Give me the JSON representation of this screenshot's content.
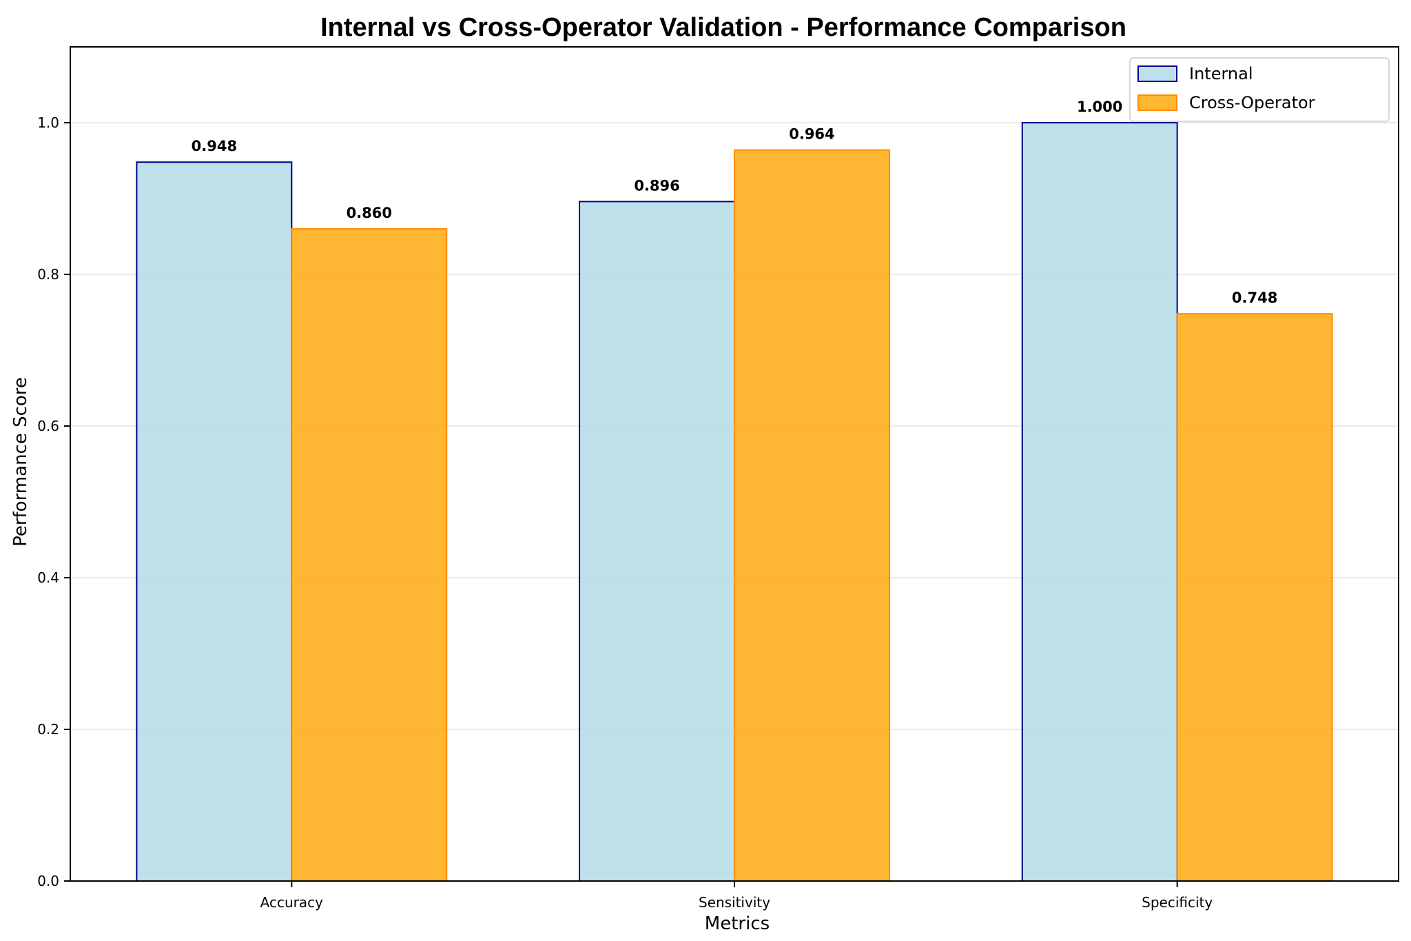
{
  "chart_data": {
    "type": "bar",
    "title": "Internal vs Cross-Operator Validation - Performance Comparison",
    "xlabel": "Metrics",
    "ylabel": "Performance Score",
    "categories": [
      "Accuracy",
      "Sensitivity",
      "Specificity"
    ],
    "series": [
      {
        "name": "Internal",
        "values": [
          0.948,
          0.896,
          1.0
        ],
        "value_labels": [
          "0.948",
          "0.896",
          "1.000"
        ],
        "color": "#add8e6",
        "edge_color": "#00008b"
      },
      {
        "name": "Cross-Operator",
        "values": [
          0.86,
          0.964,
          0.748
        ],
        "value_labels": [
          "0.860",
          "0.964",
          "0.748"
        ],
        "color": "#ffa500",
        "edge_color": "#ff8c00"
      }
    ],
    "ylim": [
      0,
      1.1
    ],
    "yticks": [
      0.0,
      0.2,
      0.4,
      0.6,
      0.8,
      1.0
    ],
    "ytick_labels": [
      "0.0",
      "0.2",
      "0.4",
      "0.6",
      "0.8",
      "1.0"
    ],
    "grid": "y",
    "legend_position": "top-right"
  }
}
